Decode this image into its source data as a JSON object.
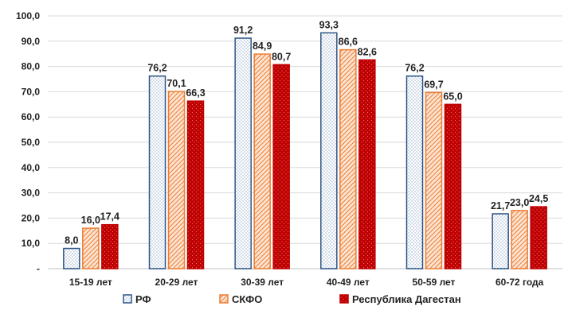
{
  "chart_data": {
    "type": "bar",
    "categories": [
      "15-19 лет",
      "20-29  лет",
      "30-39 лет",
      "40-49 лет",
      "50-59 лет",
      "60-72 года"
    ],
    "series": [
      {
        "name": "РФ",
        "values": [
          8.0,
          76.2,
          91.2,
          93.3,
          76.2,
          21.7
        ],
        "labels": [
          "8,0",
          "76,2",
          "91,2",
          "93,3",
          "76,2",
          "21,7"
        ],
        "color": "#2e5585",
        "pattern": "dots"
      },
      {
        "name": "СКФО",
        "values": [
          16.0,
          70.1,
          84.9,
          86.6,
          69.7,
          23.0
        ],
        "labels": [
          "16,0",
          "70,1",
          "84,9",
          "86,6",
          "69,7",
          "23,0"
        ],
        "color": "#ed7d31",
        "pattern": "hatch"
      },
      {
        "name": "Республика Дагестан",
        "values": [
          17.4,
          66.3,
          80.7,
          82.6,
          65.0,
          24.5
        ],
        "labels": [
          "17,4",
          "66,3",
          "80,7",
          "82,6",
          "65,0",
          "24,5"
        ],
        "color": "#c00000",
        "pattern": "dots"
      }
    ],
    "yticks": [
      "-",
      "10,0",
      "20,0",
      "30,0",
      "40,0",
      "50,0",
      "60,0",
      "70,0",
      "80,0",
      "90,0",
      "100,0"
    ],
    "ylim": [
      0,
      100
    ],
    "grid": true,
    "legend_position": "bottom"
  }
}
